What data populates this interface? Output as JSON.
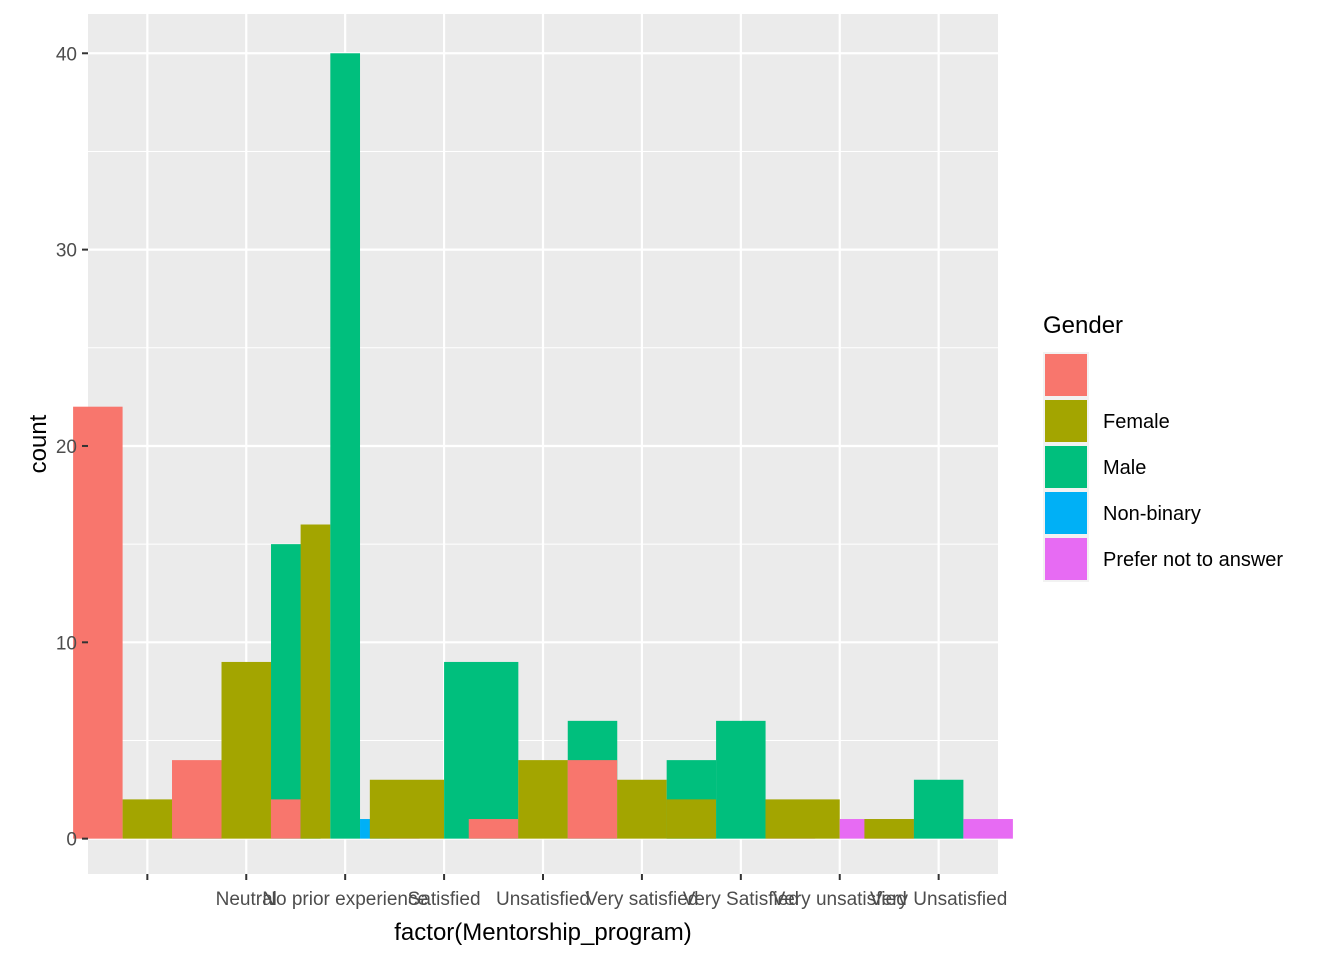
{
  "chart_data": {
    "type": "bar",
    "xlabel": "factor(Mentorship_program)",
    "ylabel": "count",
    "ylim": [
      -1.8,
      42
    ],
    "yticks": [
      0,
      10,
      20,
      30,
      40
    ],
    "grid": true,
    "legend_position": "right",
    "legend_title": "Gender",
    "categories": [
      "",
      "Neutral",
      "No prior experience",
      "Satisfied",
      "Unsatisfied",
      "Very satisfied",
      "Very Satisfied",
      "Very unsatisfied",
      "Very Unsatisfied"
    ],
    "groups": [
      "",
      "Female",
      "Male",
      "Non-binary",
      "Prefer not to answer"
    ],
    "colors": {
      "": "#F8766D",
      "Female": "#A3A500",
      "Male": "#00BF7D",
      "Non-binary": "#00B0F6",
      "Prefer not to answer": "#E76BF3"
    },
    "bars": [
      {
        "category": 0,
        "groups": [
          "",
          "Female",
          "Male"
        ],
        "values": [
          22,
          2,
          2
        ]
      },
      {
        "category": 1,
        "groups": [
          "",
          "Female",
          "Male"
        ],
        "values": [
          4,
          9,
          15
        ]
      },
      {
        "category": 2,
        "groups": [
          "",
          "Female",
          "Male",
          "Non-binary",
          "Prefer not to answer"
        ],
        "values": [
          2,
          16,
          40,
          1,
          1
        ]
      },
      {
        "category": 3,
        "groups": [
          "Female",
          "Male"
        ],
        "values": [
          3,
          9
        ]
      },
      {
        "category": 4,
        "groups": [
          "",
          "Female",
          "Male"
        ],
        "values": [
          1,
          4,
          6
        ]
      },
      {
        "category": 5,
        "groups": [
          "",
          "Female",
          "Male"
        ],
        "values": [
          4,
          3,
          4
        ]
      },
      {
        "category": 6,
        "groups": [
          "Female",
          "Male",
          "Prefer not to answer"
        ],
        "values": [
          2,
          6,
          1
        ]
      },
      {
        "category": 7,
        "groups": [
          "Female",
          "Prefer not to answer"
        ],
        "values": [
          2,
          1
        ]
      },
      {
        "category": 8,
        "groups": [
          "Female",
          "Male",
          "Prefer not to answer"
        ],
        "values": [
          1,
          3,
          1
        ]
      }
    ]
  }
}
